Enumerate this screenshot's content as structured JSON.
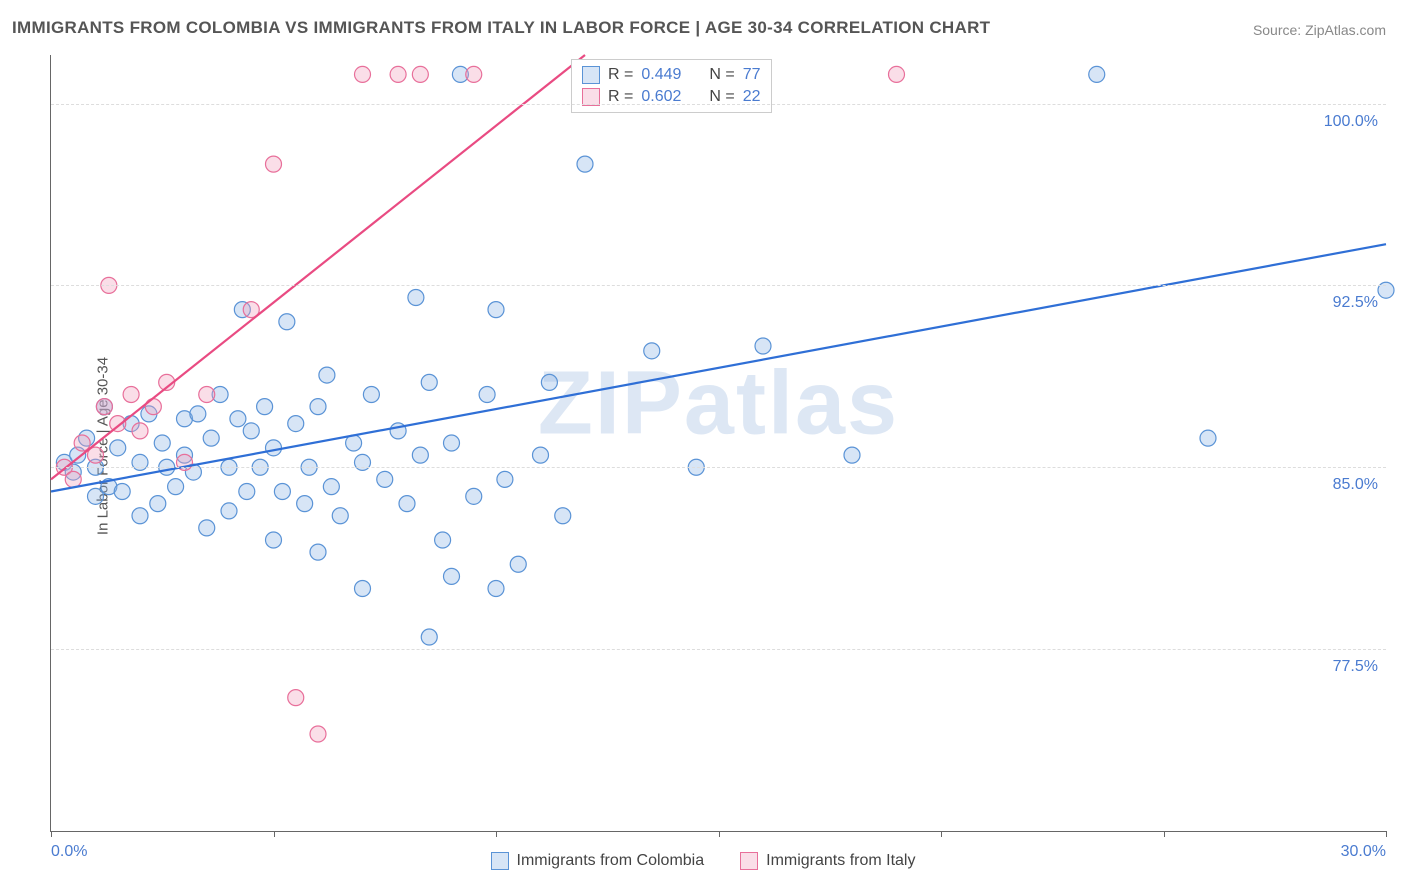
{
  "title": "IMMIGRANTS FROM COLOMBIA VS IMMIGRANTS FROM ITALY IN LABOR FORCE | AGE 30-34 CORRELATION CHART",
  "source": "Source: ZipAtlas.com",
  "y_axis_label": "In Labor Force | Age 30-34",
  "watermark": "ZIPatlas",
  "chart": {
    "type": "scatter",
    "xlim": [
      0,
      30
    ],
    "ylim": [
      70,
      102
    ],
    "x_ticks": [
      0,
      5,
      10,
      15,
      20,
      25,
      30
    ],
    "x_tick_labels": {
      "0": "0.0%",
      "30": "30.0%"
    },
    "y_ticks": [
      77.5,
      85.0,
      92.5,
      100.0
    ],
    "y_tick_labels": [
      "77.5%",
      "85.0%",
      "92.5%",
      "100.0%"
    ],
    "grid_color": "#dddddd",
    "background_color": "#ffffff",
    "marker_radius": 8,
    "marker_stroke_width": 1.2,
    "line_width": 2.2,
    "series": [
      {
        "name": "Immigrants from Colombia",
        "fill": "rgba(140, 180, 230, 0.35)",
        "stroke": "#5a93d6",
        "line_color": "#2f6fd6",
        "r_value": "0.449",
        "n_value": "77",
        "regression": {
          "x1": 0,
          "y1": 84.0,
          "x2": 30,
          "y2": 94.2
        },
        "points": [
          [
            0.3,
            85.2
          ],
          [
            0.5,
            84.8
          ],
          [
            0.6,
            85.5
          ],
          [
            0.8,
            86.2
          ],
          [
            1.0,
            85.0
          ],
          [
            1.0,
            83.8
          ],
          [
            1.2,
            87.5
          ],
          [
            1.3,
            84.2
          ],
          [
            1.5,
            85.8
          ],
          [
            1.6,
            84.0
          ],
          [
            1.8,
            86.8
          ],
          [
            2.0,
            83.0
          ],
          [
            2.0,
            85.2
          ],
          [
            2.2,
            87.2
          ],
          [
            2.4,
            83.5
          ],
          [
            2.5,
            86.0
          ],
          [
            2.6,
            85.0
          ],
          [
            2.8,
            84.2
          ],
          [
            3.0,
            87.0
          ],
          [
            3.0,
            85.5
          ],
          [
            3.2,
            84.8
          ],
          [
            3.3,
            87.2
          ],
          [
            3.5,
            82.5
          ],
          [
            3.6,
            86.2
          ],
          [
            3.8,
            88.0
          ],
          [
            4.0,
            85.0
          ],
          [
            4.0,
            83.2
          ],
          [
            4.2,
            87.0
          ],
          [
            4.3,
            91.5
          ],
          [
            4.4,
            84.0
          ],
          [
            4.5,
            86.5
          ],
          [
            4.7,
            85.0
          ],
          [
            4.8,
            87.5
          ],
          [
            5.0,
            82.0
          ],
          [
            5.0,
            85.8
          ],
          [
            5.2,
            84.0
          ],
          [
            5.3,
            91.0
          ],
          [
            5.5,
            86.8
          ],
          [
            5.7,
            83.5
          ],
          [
            5.8,
            85.0
          ],
          [
            6.0,
            87.5
          ],
          [
            6.0,
            81.5
          ],
          [
            6.2,
            88.8
          ],
          [
            6.3,
            84.2
          ],
          [
            6.5,
            83.0
          ],
          [
            6.8,
            86.0
          ],
          [
            7.0,
            85.2
          ],
          [
            7.0,
            80.0
          ],
          [
            7.2,
            88.0
          ],
          [
            7.5,
            84.5
          ],
          [
            7.8,
            86.5
          ],
          [
            8.0,
            83.5
          ],
          [
            8.2,
            92.0
          ],
          [
            8.3,
            85.5
          ],
          [
            8.5,
            88.5
          ],
          [
            8.5,
            78.0
          ],
          [
            8.8,
            82.0
          ],
          [
            9.0,
            86.0
          ],
          [
            9.0,
            80.5
          ],
          [
            9.2,
            101.2
          ],
          [
            9.5,
            83.8
          ],
          [
            9.8,
            88.0
          ],
          [
            10.0,
            91.5
          ],
          [
            10.0,
            80.0
          ],
          [
            10.2,
            84.5
          ],
          [
            10.5,
            81.0
          ],
          [
            11.0,
            85.5
          ],
          [
            11.2,
            88.5
          ],
          [
            11.5,
            83.0
          ],
          [
            12.0,
            97.5
          ],
          [
            13.5,
            89.8
          ],
          [
            14.5,
            85.0
          ],
          [
            16.0,
            90.0
          ],
          [
            18.0,
            85.5
          ],
          [
            23.5,
            101.2
          ],
          [
            26.0,
            86.2
          ],
          [
            30.0,
            92.3
          ]
        ]
      },
      {
        "name": "Immigrants from Italy",
        "fill": "rgba(240, 160, 190, 0.35)",
        "stroke": "#e86f9a",
        "line_color": "#e94b82",
        "r_value": "0.602",
        "n_value": "22",
        "regression": {
          "x1": 0,
          "y1": 84.5,
          "x2": 12,
          "y2": 102.0
        },
        "points": [
          [
            0.3,
            85.0
          ],
          [
            0.5,
            84.5
          ],
          [
            0.7,
            86.0
          ],
          [
            1.0,
            85.5
          ],
          [
            1.2,
            87.5
          ],
          [
            1.3,
            92.5
          ],
          [
            1.5,
            86.8
          ],
          [
            1.8,
            88.0
          ],
          [
            2.0,
            86.5
          ],
          [
            2.3,
            87.5
          ],
          [
            2.6,
            88.5
          ],
          [
            3.0,
            85.2
          ],
          [
            3.5,
            88.0
          ],
          [
            4.5,
            91.5
          ],
          [
            5.0,
            97.5
          ],
          [
            5.5,
            75.5
          ],
          [
            6.0,
            74.0
          ],
          [
            7.0,
            101.2
          ],
          [
            7.8,
            101.2
          ],
          [
            8.3,
            101.2
          ],
          [
            9.5,
            101.2
          ],
          [
            19.0,
            101.2
          ]
        ]
      }
    ]
  },
  "legend_top": {
    "r_prefix": "R =",
    "n_prefix": "N ="
  },
  "legend_bottom": {
    "series1": "Immigrants from Colombia",
    "series2": "Immigrants from Italy"
  }
}
